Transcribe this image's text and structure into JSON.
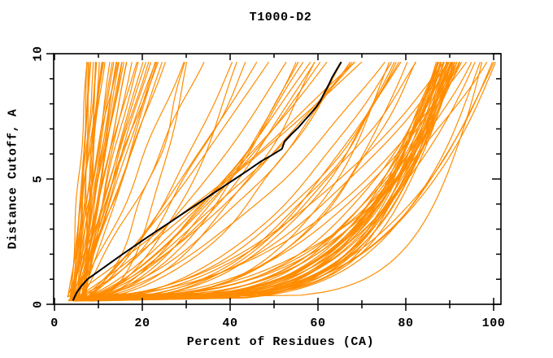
{
  "chart_data": {
    "type": "line",
    "title": "T1000-D2",
    "xlabel": "Percent of Residues (CA)",
    "ylabel": "Distance Cutoff, A",
    "xlim": [
      0,
      101.8
    ],
    "ylim": [
      0,
      10
    ],
    "x_major_ticks": [
      0,
      20,
      40,
      60,
      80,
      100
    ],
    "x_minor_ticks": [
      10,
      30,
      50,
      70,
      90
    ],
    "y_major_ticks": [
      0,
      5,
      10
    ],
    "y_minor_ticks": [
      1,
      2,
      3,
      4,
      6,
      7,
      8,
      9
    ],
    "grid": false,
    "legend": "none",
    "colors": {
      "model_curves": "#FF8C00",
      "reference_curve": "#000000",
      "axis": "#000000",
      "background": "#FFFFFF"
    },
    "curve_top_cutoff": 9.67,
    "curve_bottom_cutoff_range": [
      0.12,
      0.32
    ],
    "reference_curve": {
      "name": "reference-model",
      "points_pct_vs_angstrom": [
        [
          4.2,
          0.15
        ],
        [
          5.0,
          0.45
        ],
        [
          6.2,
          0.75
        ],
        [
          7.5,
          1.0
        ],
        [
          9.5,
          1.25
        ],
        [
          11.5,
          1.5
        ],
        [
          13.5,
          1.75
        ],
        [
          15.5,
          2.0
        ],
        [
          18.0,
          2.3
        ],
        [
          20.5,
          2.6
        ],
        [
          23.5,
          2.95
        ],
        [
          26.5,
          3.3
        ],
        [
          29.5,
          3.65
        ],
        [
          32.5,
          4.0
        ],
        [
          35.5,
          4.35
        ],
        [
          38.5,
          4.7
        ],
        [
          41.5,
          5.05
        ],
        [
          44.5,
          5.4
        ],
        [
          47.0,
          5.7
        ],
        [
          49.5,
          5.95
        ],
        [
          51.8,
          6.2
        ],
        [
          52.4,
          6.5
        ],
        [
          54.0,
          6.8
        ],
        [
          55.5,
          7.05
        ],
        [
          57.0,
          7.35
        ],
        [
          58.3,
          7.6
        ],
        [
          59.5,
          7.85
        ],
        [
          60.5,
          8.1
        ],
        [
          61.5,
          8.45
        ],
        [
          62.4,
          8.75
        ],
        [
          63.2,
          9.05
        ],
        [
          64.2,
          9.35
        ],
        [
          65.3,
          9.67
        ]
      ]
    },
    "model_curve_groups": [
      {
        "name": "left-bundle",
        "count": 40,
        "start_pct": [
          2.5,
          7.5
        ],
        "top_pct": [
          7,
          27
        ],
        "shape_exp": [
          0.8,
          1.25
        ],
        "wobble": 0.4
      },
      {
        "name": "mid-fan",
        "count": 25,
        "start_pct": [
          3,
          9
        ],
        "top_pct": [
          28,
          80
        ],
        "shape_exp": [
          0.45,
          0.95
        ],
        "wobble": 1.0
      },
      {
        "name": "right-band",
        "count": 34,
        "start_pct": [
          3.5,
          9
        ],
        "top_pct": [
          86.5,
          93
        ],
        "shape_exp": [
          0.17,
          0.3
        ],
        "wobble": 0.7
      },
      {
        "name": "right-scatter",
        "count": 15,
        "start_pct": [
          3,
          9
        ],
        "top_pct": [
          76,
          99
        ],
        "shape_exp": [
          0.28,
          0.5
        ],
        "wobble": 1.0
      },
      {
        "name": "far-right",
        "count": 6,
        "start_pct": [
          4,
          9
        ],
        "top_pct": [
          95.5,
          101
        ],
        "shape_exp": [
          0.14,
          0.3
        ],
        "wobble": 0.5
      }
    ],
    "seed": 20
  }
}
